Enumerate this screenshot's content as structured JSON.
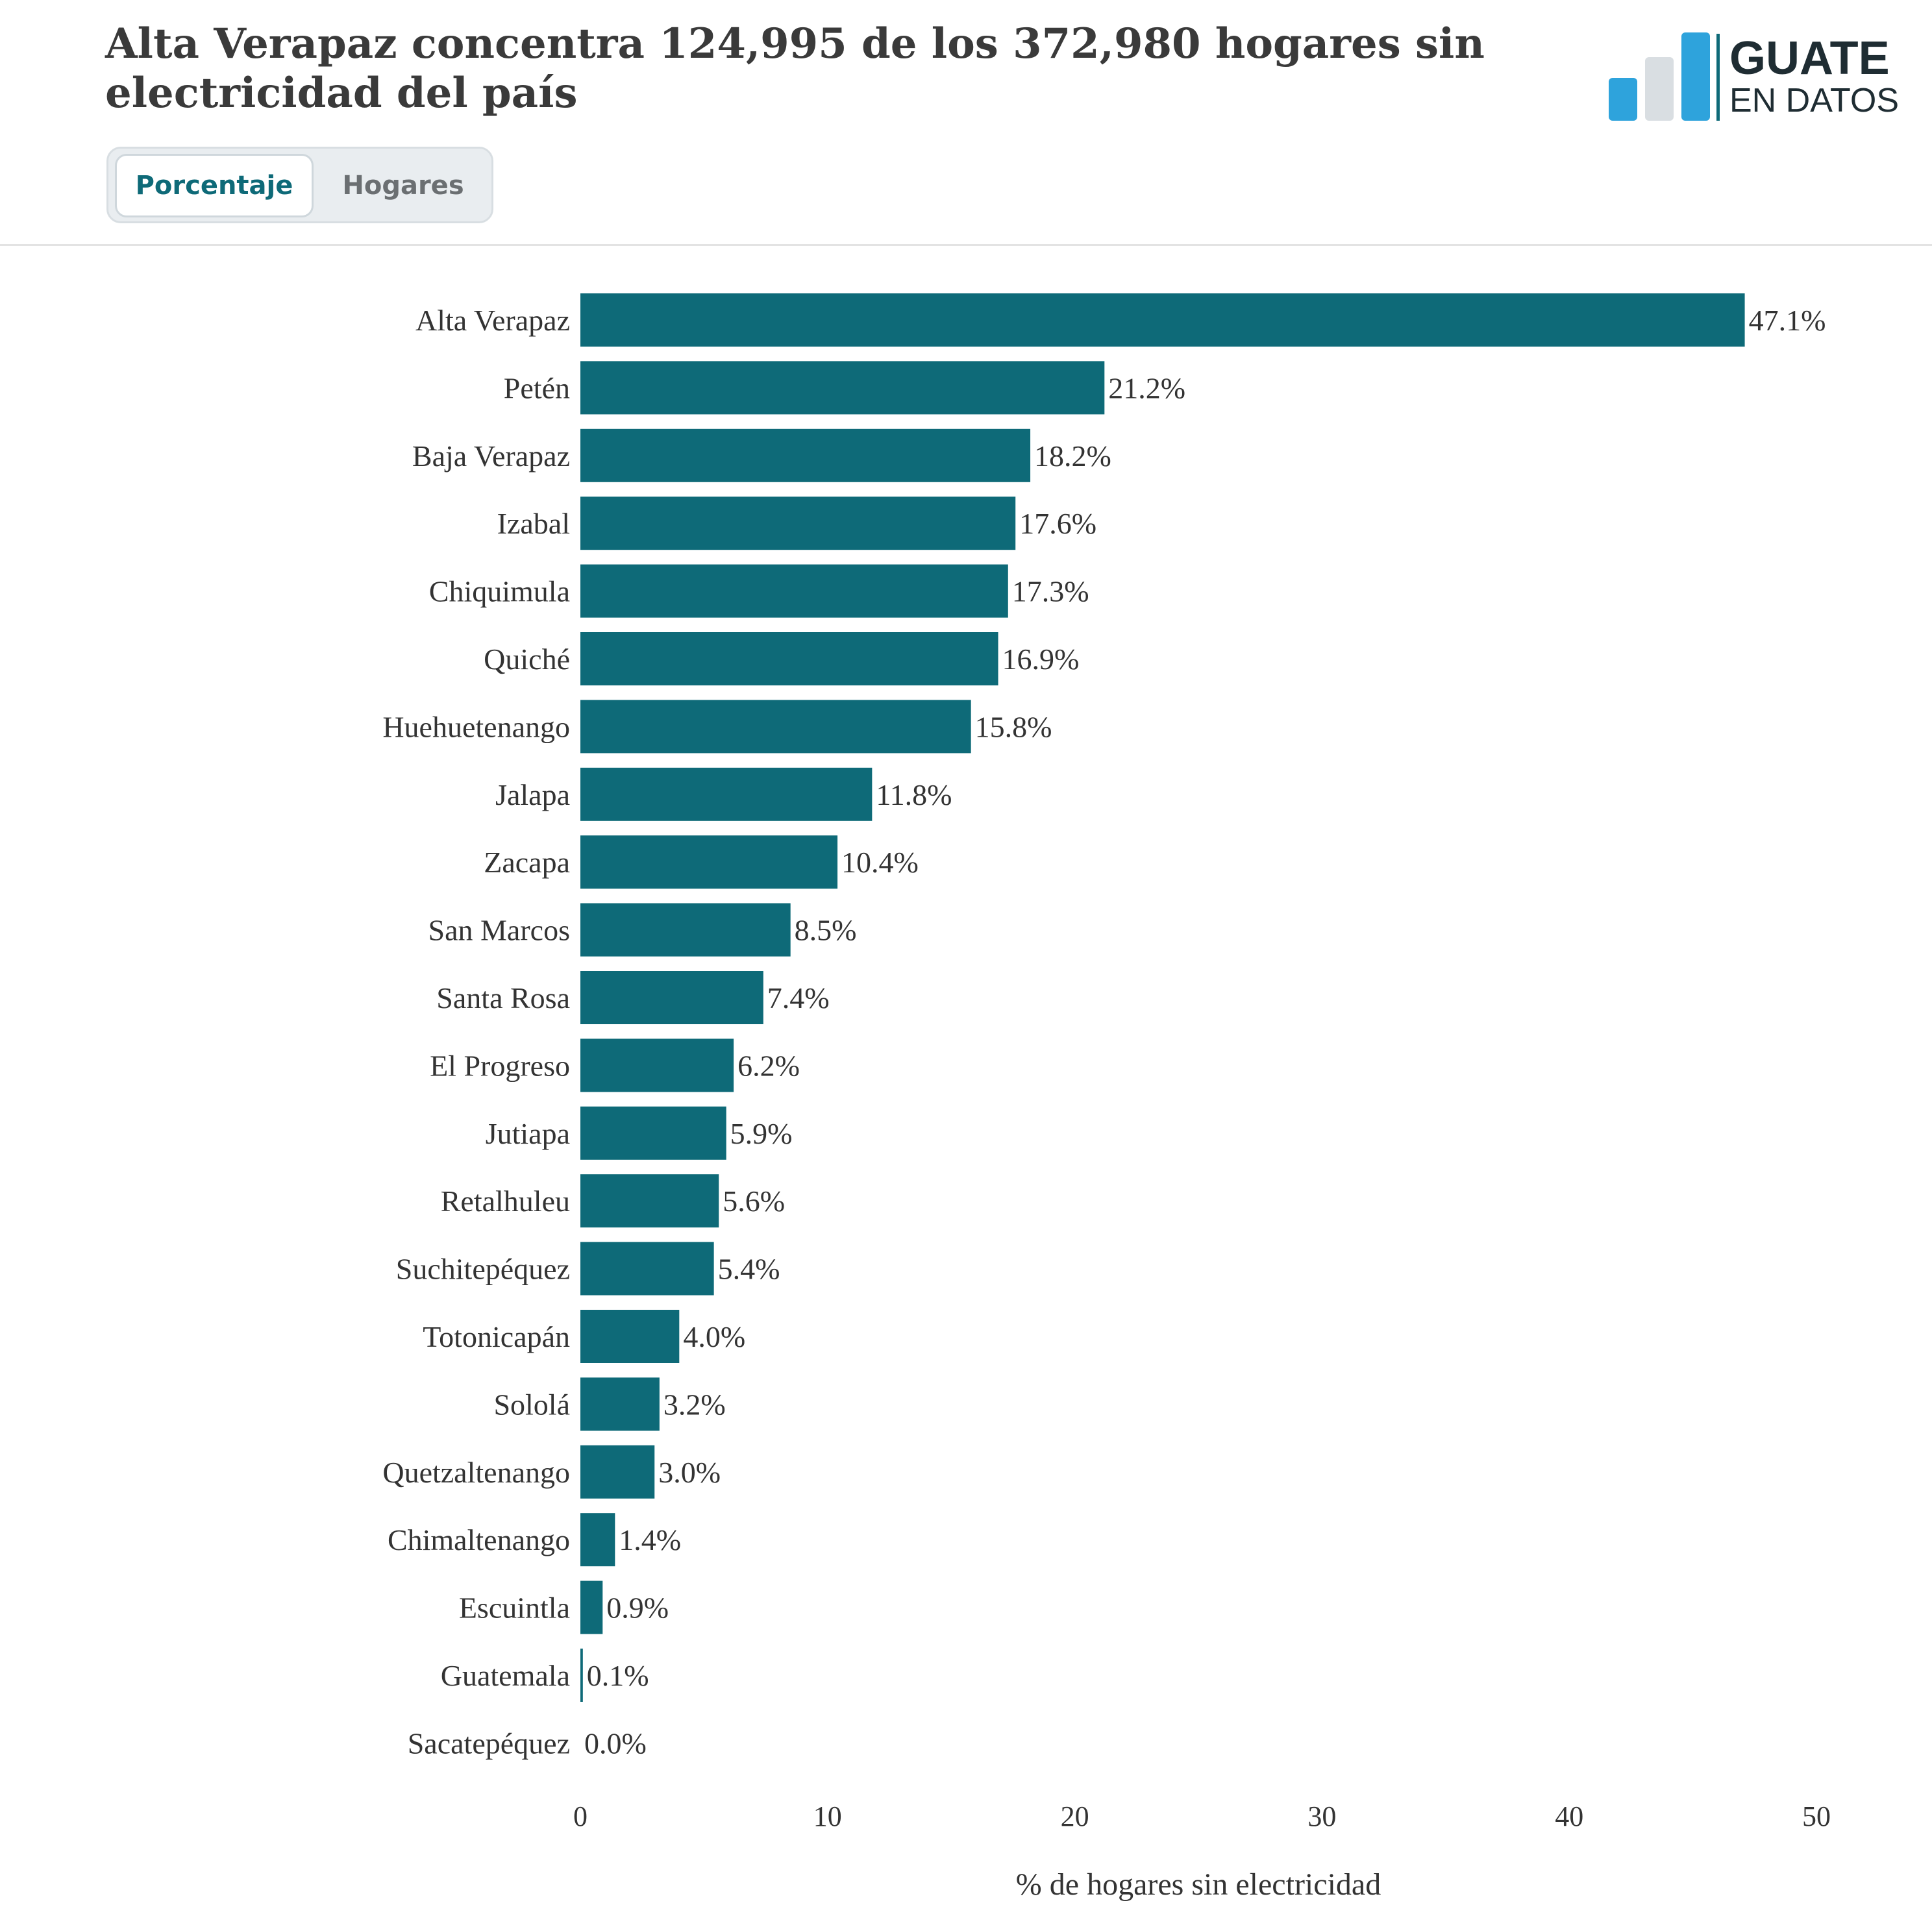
{
  "header": {
    "title": "Alta Verapaz concentra 124,995 de los 372,980 hogares sin electricidad del país",
    "logo_line1": "GUATE",
    "logo_line2": "EN DATOS"
  },
  "tabs": [
    {
      "label": "Porcentaje",
      "active": true
    },
    {
      "label": "Hogares",
      "active": false
    }
  ],
  "colors": {
    "bar": "#0e6a78",
    "accent": "#0e6a78",
    "logo_blue": "#2ea3dc",
    "logo_gray": "#d9dee2",
    "logo_dark": "#1f2d33"
  },
  "chart_data": {
    "type": "bar",
    "orientation": "horizontal",
    "title": "",
    "xlabel": "% de hogares sin electricidad",
    "ylabel": "",
    "xlim": [
      0,
      50
    ],
    "xticks": [
      0,
      10,
      20,
      30,
      40,
      50
    ],
    "grid": false,
    "categories": [
      "Alta Verapaz",
      "Petén",
      "Baja Verapaz",
      "Izabal",
      "Chiquimula",
      "Quiché",
      "Huehuetenango",
      "Jalapa",
      "Zacapa",
      "San Marcos",
      "Santa Rosa",
      "El Progreso",
      "Jutiapa",
      "Retalhuleu",
      "Suchitepéquez",
      "Totonicapán",
      "Sololá",
      "Quetzaltenango",
      "Chimaltenango",
      "Escuintla",
      "Guatemala",
      "Sacatepéquez"
    ],
    "values": [
      47.1,
      21.2,
      18.2,
      17.6,
      17.3,
      16.9,
      15.8,
      11.8,
      10.4,
      8.5,
      7.4,
      6.2,
      5.9,
      5.6,
      5.4,
      4.0,
      3.2,
      3.0,
      1.4,
      0.9,
      0.1,
      0.0
    ],
    "value_labels": [
      "47.1%",
      "21.2%",
      "18.2%",
      "17.6%",
      "17.3%",
      "16.9%",
      "15.8%",
      "11.8%",
      "10.4%",
      "8.5%",
      "7.4%",
      "6.2%",
      "5.9%",
      "5.6%",
      "5.4%",
      "4.0%",
      "3.2%",
      "3.0%",
      "1.4%",
      "0.9%",
      "0.1%",
      "0.0%"
    ]
  }
}
